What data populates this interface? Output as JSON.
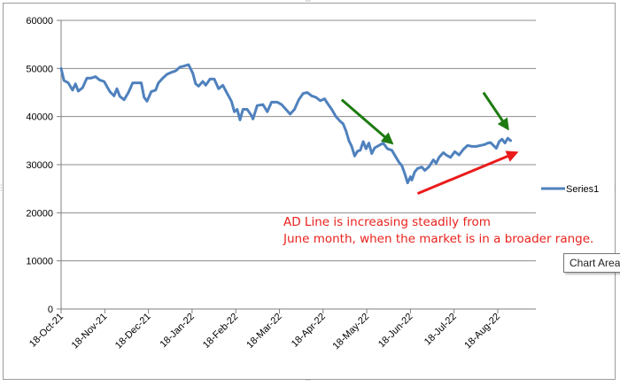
{
  "chart_data": {
    "type": "line",
    "title": "",
    "xlabel": "",
    "ylabel": "",
    "ylim": [
      0,
      60000
    ],
    "yticks": [
      0,
      10000,
      20000,
      30000,
      40000,
      50000,
      60000
    ],
    "ytick_labels": [
      "0",
      "10000",
      "20000",
      "30000",
      "40000",
      "50000",
      "60000"
    ],
    "x_start": "2021-10-18",
    "x_end": "2022-09-01",
    "xtick_labels": [
      "18-Oct-21",
      "18-Nov-21",
      "18-Dec-21",
      "18-Jan-22",
      "18-Feb-22",
      "18-Mar-22",
      "18-Apr-22",
      "18-May-22",
      "18-Jun-22",
      "18-Jul-22",
      "18-Aug-22"
    ],
    "grid": true,
    "legend_position": "right",
    "series": [
      {
        "name": "Series1",
        "color": "#4f81bd",
        "points": [
          [
            "2021-10-18",
            50000
          ],
          [
            "2021-10-20",
            47500
          ],
          [
            "2021-10-23",
            47000
          ],
          [
            "2021-10-26",
            45500
          ],
          [
            "2021-10-28",
            46800
          ],
          [
            "2021-10-30",
            45300
          ],
          [
            "2021-11-02",
            46000
          ],
          [
            "2021-11-05",
            48000
          ],
          [
            "2021-11-08",
            48000
          ],
          [
            "2021-11-11",
            48300
          ],
          [
            "2021-11-14",
            47600
          ],
          [
            "2021-11-17",
            47300
          ],
          [
            "2021-11-21",
            45200
          ],
          [
            "2021-11-24",
            44300
          ],
          [
            "2021-11-26",
            45800
          ],
          [
            "2021-11-28",
            44200
          ],
          [
            "2021-12-01",
            43500
          ],
          [
            "2021-12-04",
            45000
          ],
          [
            "2021-12-07",
            47000
          ],
          [
            "2021-12-10",
            47000
          ],
          [
            "2021-12-13",
            47000
          ],
          [
            "2021-12-15",
            44000
          ],
          [
            "2021-12-17",
            43200
          ],
          [
            "2021-12-20",
            45200
          ],
          [
            "2021-12-23",
            45500
          ],
          [
            "2021-12-25",
            47000
          ],
          [
            "2021-12-28",
            48000
          ],
          [
            "2021-12-31",
            48800
          ],
          [
            "2022-01-03",
            49200
          ],
          [
            "2022-01-06",
            49500
          ],
          [
            "2022-01-09",
            50300
          ],
          [
            "2022-01-12",
            50500
          ],
          [
            "2022-01-15",
            50800
          ],
          [
            "2022-01-18",
            49000
          ],
          [
            "2022-01-20",
            46800
          ],
          [
            "2022-01-22",
            46300
          ],
          [
            "2022-01-25",
            47300
          ],
          [
            "2022-01-27",
            46500
          ],
          [
            "2022-01-30",
            47800
          ],
          [
            "2022-02-02",
            47800
          ],
          [
            "2022-02-05",
            45800
          ],
          [
            "2022-02-08",
            46500
          ],
          [
            "2022-02-11",
            44800
          ],
          [
            "2022-02-14",
            43200
          ],
          [
            "2022-02-16",
            41000
          ],
          [
            "2022-02-18",
            41500
          ],
          [
            "2022-02-20",
            39300
          ],
          [
            "2022-02-22",
            41500
          ],
          [
            "2022-02-25",
            41500
          ],
          [
            "2022-02-28",
            40200
          ],
          [
            "2022-03-01",
            39500
          ],
          [
            "2022-03-04",
            42300
          ],
          [
            "2022-03-08",
            42500
          ],
          [
            "2022-03-11",
            41000
          ],
          [
            "2022-03-14",
            43000
          ],
          [
            "2022-03-18",
            43000
          ],
          [
            "2022-03-21",
            42500
          ],
          [
            "2022-03-24",
            41500
          ],
          [
            "2022-03-27",
            40500
          ],
          [
            "2022-03-30",
            41500
          ],
          [
            "2022-04-02",
            43500
          ],
          [
            "2022-04-05",
            44800
          ],
          [
            "2022-04-08",
            45000
          ],
          [
            "2022-04-11",
            44300
          ],
          [
            "2022-04-14",
            44000
          ],
          [
            "2022-04-17",
            43300
          ],
          [
            "2022-04-20",
            43700
          ],
          [
            "2022-04-22",
            42800
          ],
          [
            "2022-04-25",
            41500
          ],
          [
            "2022-04-28",
            40000
          ],
          [
            "2022-05-01",
            39000
          ],
          [
            "2022-05-03",
            38500
          ],
          [
            "2022-05-05",
            37000
          ],
          [
            "2022-05-07",
            35000
          ],
          [
            "2022-05-09",
            33800
          ],
          [
            "2022-05-11",
            31800
          ],
          [
            "2022-05-13",
            32800
          ],
          [
            "2022-05-15",
            33000
          ],
          [
            "2022-05-17",
            34800
          ],
          [
            "2022-05-19",
            33300
          ],
          [
            "2022-05-21",
            34500
          ],
          [
            "2022-05-23",
            32300
          ],
          [
            "2022-05-25",
            33500
          ],
          [
            "2022-05-28",
            34000
          ],
          [
            "2022-05-31",
            34500
          ],
          [
            "2022-06-03",
            33300
          ],
          [
            "2022-06-06",
            33000
          ],
          [
            "2022-06-09",
            31500
          ],
          [
            "2022-06-11",
            30500
          ],
          [
            "2022-06-13",
            29800
          ],
          [
            "2022-06-15",
            28200
          ],
          [
            "2022-06-17",
            26200
          ],
          [
            "2022-06-19",
            27500
          ],
          [
            "2022-06-20",
            26800
          ],
          [
            "2022-06-22",
            28500
          ],
          [
            "2022-06-24",
            29200
          ],
          [
            "2022-06-27",
            29500
          ],
          [
            "2022-06-29",
            28800
          ],
          [
            "2022-07-02",
            29600
          ],
          [
            "2022-07-05",
            31000
          ],
          [
            "2022-07-07",
            30300
          ],
          [
            "2022-07-09",
            31500
          ],
          [
            "2022-07-12",
            32500
          ],
          [
            "2022-07-14",
            32000
          ],
          [
            "2022-07-17",
            31500
          ],
          [
            "2022-07-20",
            32700
          ],
          [
            "2022-07-23",
            32000
          ],
          [
            "2022-07-26",
            33200
          ],
          [
            "2022-07-29",
            34000
          ],
          [
            "2022-08-01",
            33800
          ],
          [
            "2022-08-04",
            33800
          ],
          [
            "2022-08-07",
            34000
          ],
          [
            "2022-08-10",
            34200
          ],
          [
            "2022-08-12",
            34500
          ],
          [
            "2022-08-14",
            34600
          ],
          [
            "2022-08-16",
            34000
          ],
          [
            "2022-08-18",
            33400
          ],
          [
            "2022-08-20",
            34800
          ],
          [
            "2022-08-22",
            35300
          ],
          [
            "2022-08-24",
            34500
          ],
          [
            "2022-08-26",
            35500
          ],
          [
            "2022-08-28",
            35000
          ]
        ]
      }
    ],
    "annotations": [
      {
        "text_lines": [
          "AD Line is increasing steadily from",
          "June month, when the market is in a broader range."
        ],
        "color": "#e8221c"
      }
    ],
    "arrows": [
      {
        "color": "#1e7b12",
        "from": [
          "2022-05-02",
          43500
        ],
        "to": [
          "2022-06-06",
          34500
        ]
      },
      {
        "color": "#1e7b12",
        "from": [
          "2022-08-09",
          45000
        ],
        "to": [
          "2022-08-26",
          37500
        ]
      },
      {
        "color": "#ea1c1c",
        "from": [
          "2022-06-24",
          24000
        ],
        "to": [
          "2022-09-01",
          32500
        ]
      }
    ]
  },
  "tooltip": {
    "text": "Chart Area"
  }
}
